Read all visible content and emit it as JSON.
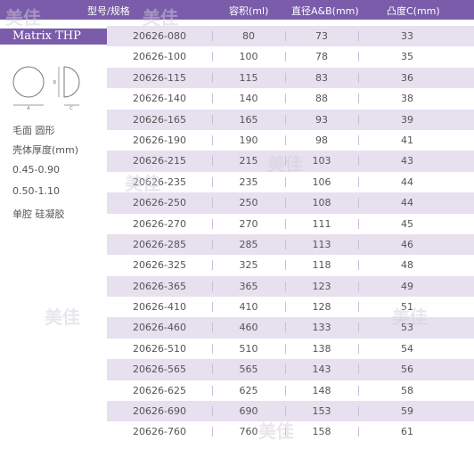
{
  "header": {
    "columns": [
      "型号/规格",
      "容积(ml)",
      "直径A&B(mm)",
      "凸度C(mm)"
    ]
  },
  "product": {
    "tag": "Matrix THP",
    "diagram_labels": {
      "a": "A",
      "b": "B",
      "c": "C"
    },
    "info_lines": [
      "毛面 圆形",
      "壳体厚度(mm)",
      "0.45-0.90",
      "0.50-1.10",
      "单腔 硅凝胶"
    ]
  },
  "rows": [
    {
      "model": "20626-080",
      "volume": "80",
      "diameter": "73",
      "projection": "33"
    },
    {
      "model": "20626-100",
      "volume": "100",
      "diameter": "78",
      "projection": "35"
    },
    {
      "model": "20626-115",
      "volume": "115",
      "diameter": "83",
      "projection": "36"
    },
    {
      "model": "20626-140",
      "volume": "140",
      "diameter": "88",
      "projection": "38"
    },
    {
      "model": "20626-165",
      "volume": "165",
      "diameter": "93",
      "projection": "39"
    },
    {
      "model": "20626-190",
      "volume": "190",
      "diameter": "98",
      "projection": "41"
    },
    {
      "model": "20626-215",
      "volume": "215",
      "diameter": "103",
      "projection": "43"
    },
    {
      "model": "20626-235",
      "volume": "235",
      "diameter": "106",
      "projection": "44"
    },
    {
      "model": "20626-250",
      "volume": "250",
      "diameter": "108",
      "projection": "44"
    },
    {
      "model": "20626-270",
      "volume": "270",
      "diameter": "111",
      "projection": "45"
    },
    {
      "model": "20626-285",
      "volume": "285",
      "diameter": "113",
      "projection": "46"
    },
    {
      "model": "20626-325",
      "volume": "325",
      "diameter": "118",
      "projection": "48"
    },
    {
      "model": "20626-365",
      "volume": "365",
      "diameter": "123",
      "projection": "49"
    },
    {
      "model": "20626-410",
      "volume": "410",
      "diameter": "128",
      "projection": "51"
    },
    {
      "model": "20626-460",
      "volume": "460",
      "diameter": "133",
      "projection": "53"
    },
    {
      "model": "20626-510",
      "volume": "510",
      "diameter": "138",
      "projection": "54"
    },
    {
      "model": "20626-565",
      "volume": "565",
      "diameter": "143",
      "projection": "56"
    },
    {
      "model": "20626-625",
      "volume": "625",
      "diameter": "148",
      "projection": "58"
    },
    {
      "model": "20626-690",
      "volume": "690",
      "diameter": "153",
      "projection": "59"
    },
    {
      "model": "20626-760",
      "volume": "760",
      "diameter": "158",
      "projection": "61"
    }
  ],
  "watermark": "美佳",
  "colors": {
    "accent": "#7a5caa",
    "row_shade": "#e6e0ef"
  }
}
